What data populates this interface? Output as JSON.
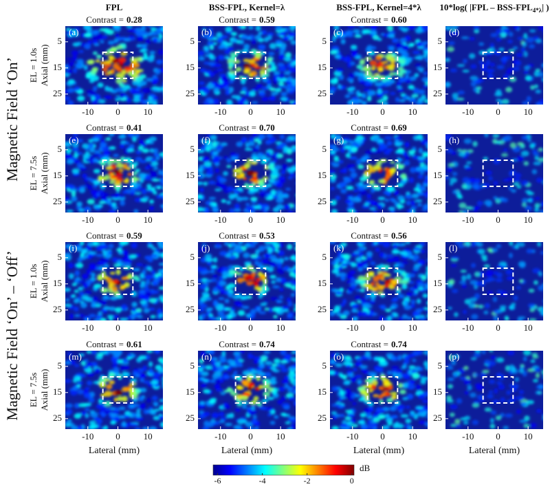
{
  "columns": [
    {
      "title": "FPL"
    },
    {
      "title": "BSS-FPL, Kernel=λ"
    },
    {
      "title": "BSS-FPL, Kernel=4*λ"
    },
    {
      "title": "10*log( |FPL – BSS-FPL",
      "subscript": "4*λ",
      "title_end": "| )"
    }
  ],
  "groups": [
    "Magnetic Field ‘On’",
    "Magnetic Field ‘On’ – ‘Off’"
  ],
  "row_labels": [
    "EL = 1.0s",
    "EL = 7.5s",
    "EL = 1.0s",
    "EL = 7.5s"
  ],
  "contrast_label": "Contrast =",
  "panels": [
    {
      "letter": "(a)",
      "contrast": "0.28"
    },
    {
      "letter": "(b)",
      "contrast": "0.59"
    },
    {
      "letter": "(c)",
      "contrast": "0.60"
    },
    {
      "letter": "(d)"
    },
    {
      "letter": "(e)",
      "contrast": "0.41"
    },
    {
      "letter": "(f)",
      "contrast": "0.70"
    },
    {
      "letter": "(g)",
      "contrast": "0.69"
    },
    {
      "letter": "(h)"
    },
    {
      "letter": "(i)",
      "contrast": "0.59"
    },
    {
      "letter": "(j)",
      "contrast": "0.53"
    },
    {
      "letter": "(k)",
      "contrast": "0.56"
    },
    {
      "letter": "(l)"
    },
    {
      "letter": "(m)",
      "contrast": "0.61"
    },
    {
      "letter": "(n)",
      "contrast": "0.74"
    },
    {
      "letter": "(o)",
      "contrast": "0.74"
    },
    {
      "letter": "(p)"
    }
  ],
  "axes": {
    "xlabel": "Lateral (mm)",
    "ylabel": "Axial (mm)",
    "xlim": [
      -17.5,
      15
    ],
    "xticks": [
      -10,
      0,
      10
    ],
    "ylim": [
      -1,
      29
    ],
    "yticks": [
      5,
      15,
      25
    ]
  },
  "colorbar": {
    "label": "dB",
    "lim": [
      -6.2,
      0.1
    ],
    "ticks": [
      -6,
      -4,
      -2,
      0
    ]
  }
}
